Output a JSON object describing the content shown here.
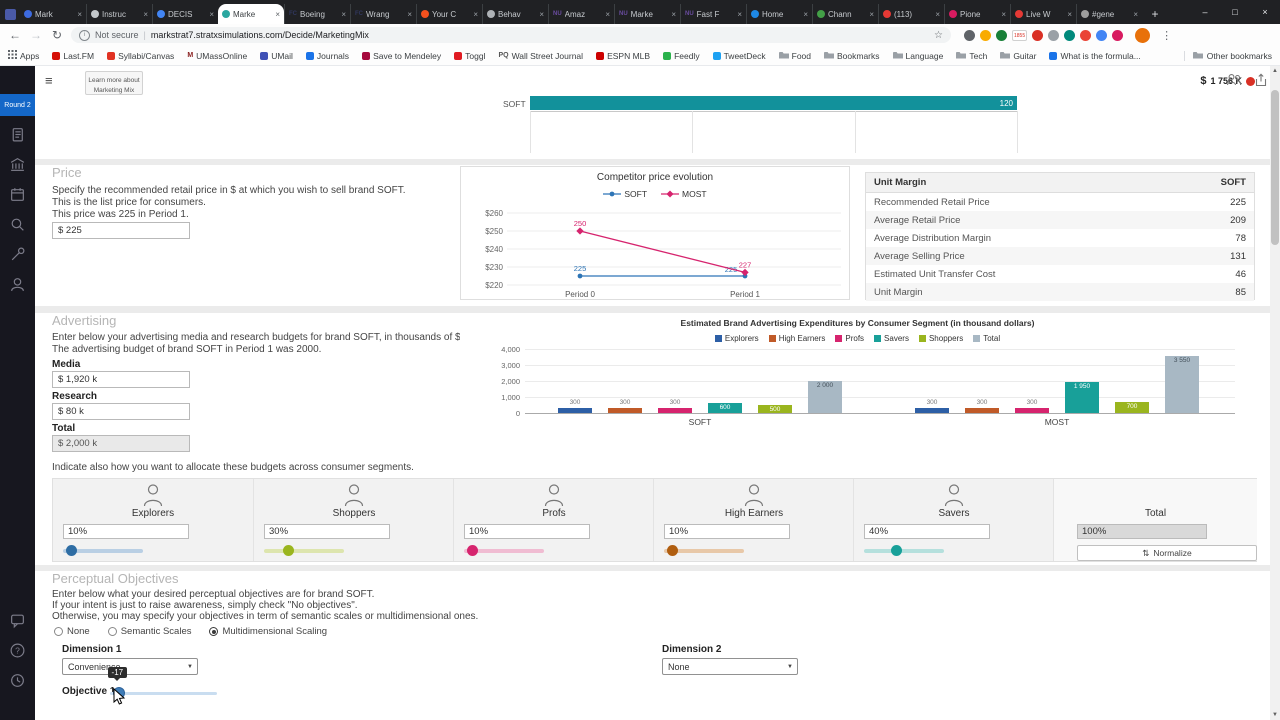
{
  "browser": {
    "window_controls": [
      "minimize",
      "maximize",
      "close"
    ],
    "tabs": [
      {
        "label": "Mark",
        "icon_color": "#3d6be0"
      },
      {
        "label": "Instruc",
        "icon_color": "#c3c7cb"
      },
      {
        "label": "DECIS",
        "icon_color": "#4285f4"
      },
      {
        "label": "Marke",
        "icon_color": "#2aa7a0",
        "active": true
      },
      {
        "label": "Boeing",
        "icon_text": "FC",
        "icon_color": "#30375e"
      },
      {
        "label": "Wrang",
        "icon_text": "FC",
        "icon_color": "#30375e"
      },
      {
        "label": "Your C",
        "icon_color": "#f4511e"
      },
      {
        "label": "Behav",
        "icon_color": "#aeb2b6"
      },
      {
        "label": "Amaz",
        "icon_text": "NU",
        "icon_color": "#6a4ca0"
      },
      {
        "label": "Marke",
        "icon_text": "NU",
        "icon_color": "#6a4ca0"
      },
      {
        "label": "Fast F",
        "icon_text": "NU",
        "icon_color": "#6a4ca0"
      },
      {
        "label": "Home",
        "icon_color": "#1e88e5"
      },
      {
        "label": "Chann",
        "icon_color": "#43a047"
      },
      {
        "label": "(113)",
        "icon_color": "#e53935"
      },
      {
        "label": "Pione",
        "icon_color": "#d81b60"
      },
      {
        "label": "Live W",
        "icon_color": "#e53935"
      },
      {
        "label": "#gene",
        "icon_color": "#9e9e9e"
      }
    ],
    "nav": {
      "not_secure": "Not secure",
      "url": "markstrat7.stratxsimulations.com/Decide/MarketingMix"
    },
    "bookmarks": [
      {
        "label": "Apps",
        "type": "apps"
      },
      {
        "label": "Last.FM",
        "type": "dot",
        "color": "#d51007"
      },
      {
        "label": "Syllabi/Canvas",
        "type": "dot",
        "color": "#e13223"
      },
      {
        "label": "UMassOnline",
        "type": "letter",
        "letter": "M",
        "color": "#881c1c"
      },
      {
        "label": "UMail",
        "type": "dot",
        "color": "#3f51b5"
      },
      {
        "label": "Journals",
        "type": "dot",
        "color": "#1a73e8"
      },
      {
        "label": "Save to Mendeley",
        "type": "dot",
        "color": "#a6093d"
      },
      {
        "label": "Toggl",
        "type": "dot",
        "color": "#e01b22"
      },
      {
        "label": "Wall Street Journal",
        "type": "letter",
        "letter": "PQ",
        "color": "#555555"
      },
      {
        "label": "ESPN MLB",
        "type": "dot",
        "color": "#cc0000"
      },
      {
        "label": "Feedly",
        "type": "dot",
        "color": "#2bb24c"
      },
      {
        "label": "TweetDeck",
        "type": "dot",
        "color": "#1da1f2"
      },
      {
        "label": "Food",
        "type": "folder"
      },
      {
        "label": "Bookmarks",
        "type": "folder"
      },
      {
        "label": "Language",
        "type": "folder"
      },
      {
        "label": "Tech",
        "type": "folder"
      },
      {
        "label": "Guitar",
        "type": "folder"
      },
      {
        "label": "What is the formula...",
        "type": "dot",
        "color": "#1a73e8"
      }
    ],
    "other_bookmarks": "Other bookmarks",
    "extensions": [
      {
        "name": "extension-search-icon",
        "color": "#5f6368"
      },
      {
        "name": "extension-star-icon",
        "color": "#f9ab00"
      },
      {
        "name": "extension-green-icon",
        "color": "#188038"
      },
      {
        "name": "extension-counter-badge",
        "color": "#ffffff",
        "badge": "1855"
      },
      {
        "name": "extension-red-icon",
        "color": "#d93025"
      },
      {
        "name": "extension-gray-icon",
        "color": "#9aa0a6"
      },
      {
        "name": "extension-teal-icon",
        "color": "#00897b"
      },
      {
        "name": "extension-mail-icon",
        "color": "#ea4335"
      },
      {
        "name": "extension-blue-icon",
        "color": "#4285f4"
      },
      {
        "name": "extension-pink-icon",
        "color": "#d81b60"
      }
    ]
  },
  "sidebar": {
    "round_badge": "Round 2",
    "top_icons": [
      "document-icon",
      "bank-icon",
      "calendar-icon",
      "search-icon",
      "wrench-icon",
      "person-icon"
    ],
    "bottom_icons": [
      "chat-icon",
      "help-icon",
      "history-icon"
    ]
  },
  "header": {
    "learn_more_line1": "Learn more about",
    "learn_more_line2": "Marketing Mix",
    "budget_currency": "$",
    "budget_value": "1 756 K"
  },
  "top_chart": {
    "label": "SOFT",
    "value": "120",
    "color": "#12919b"
  },
  "price": {
    "title": "Price",
    "line1": "Specify the recommended retail price in $ at which you wish to sell brand SOFT.",
    "line2": "This is the list price for consumers.",
    "line3": "This price was 225 in Period 1.",
    "value": "$ 225"
  },
  "competitor_chart": {
    "type": "line",
    "title": "Competitor price evolution",
    "x": [
      "Period 0",
      "Period 1"
    ],
    "series": [
      {
        "name": "SOFT",
        "color": "#2e75b6",
        "values": [
          225,
          225
        ]
      },
      {
        "name": "MOST",
        "color": "#d6246e",
        "values": [
          250,
          227
        ]
      }
    ],
    "ylim": [
      220,
      260
    ],
    "yticks": [
      "$260",
      "$250",
      "$240",
      "$230",
      "$220"
    ]
  },
  "unit_margin": {
    "headers": [
      "Unit Margin",
      "SOFT"
    ],
    "rows": [
      {
        "label": "Recommended Retail Price",
        "value": "225"
      },
      {
        "label": "Average Retail Price",
        "value": "209"
      },
      {
        "label": "Average Distribution Margin",
        "value": "78"
      },
      {
        "label": "Average Selling Price",
        "value": "131"
      },
      {
        "label": "Estimated Unit Transfer Cost",
        "value": "46"
      },
      {
        "label": "Unit Margin",
        "value": "85"
      }
    ]
  },
  "advertising": {
    "title": "Advertising",
    "line1": "Enter below your advertising media and research budgets for brand SOFT, in thousands of $.",
    "line2": "The advertising budget of brand SOFT in Period 1 was 2000.",
    "fields": [
      {
        "label": "Media",
        "value": "$ 1,920 k",
        "readonly": false
      },
      {
        "label": "Research",
        "value": "$ 80 k",
        "readonly": false
      },
      {
        "label": "Total",
        "value": "$ 2,000 k",
        "readonly": true
      }
    ]
  },
  "ad_chart": {
    "type": "bar",
    "title": "Estimated Brand Advertising Expenditures by Consumer Segment (in thousand dollars)",
    "categories": [
      "SOFT",
      "MOST"
    ],
    "series": [
      {
        "name": "Explorers",
        "color": "#2d5fa6",
        "values": [
          300,
          300
        ]
      },
      {
        "name": "High Earners",
        "color": "#c05a28",
        "values": [
          300,
          300
        ]
      },
      {
        "name": "Profs",
        "color": "#d6246e",
        "values": [
          300,
          300
        ]
      },
      {
        "name": "Savers",
        "color": "#18a099",
        "values": [
          600,
          1950
        ]
      },
      {
        "name": "Shoppers",
        "color": "#9ab51e",
        "values": [
          500,
          700
        ]
      },
      {
        "name": "Total",
        "color": "#a8b8c4",
        "values": [
          2000,
          3550
        ]
      }
    ],
    "ylim": [
      0,
      4000
    ],
    "yticks": [
      "4,000",
      "3,000",
      "2,000",
      "1,000",
      "0"
    ]
  },
  "allocation": {
    "intro": "Indicate also how you want to allocate these budgets across consumer segments.",
    "segments": [
      {
        "name": "Explorers",
        "value": "10%",
        "pct": 10,
        "color": "#2e6da4",
        "track": "#b9cfe4"
      },
      {
        "name": "Shoppers",
        "value": "30%",
        "pct": 30,
        "color": "#9ab51e",
        "track": "#dde5ae"
      },
      {
        "name": "Profs",
        "value": "10%",
        "pct": 10,
        "color": "#d6246e",
        "track": "#f0bcd2"
      },
      {
        "name": "High Earners",
        "value": "10%",
        "pct": 10,
        "color": "#b05e10",
        "track": "#e8c8a8"
      },
      {
        "name": "Savers",
        "value": "40%",
        "pct": 40,
        "color": "#18a099",
        "track": "#b5e0dd"
      }
    ],
    "total": {
      "name": "Total",
      "value": "100%",
      "normalize_label": "Normalize"
    }
  },
  "perceptual": {
    "title": "Perceptual Objectives",
    "line1": "Enter below what your desired perceptual objectives are for brand SOFT.",
    "line2": "If your intent is just to raise awareness, simply check \"No objectives\".",
    "line3": "Otherwise, you may specify your objectives in term of semantic scales or multidimensional ones.",
    "options": [
      {
        "label": "None",
        "selected": false
      },
      {
        "label": "Semantic Scales",
        "selected": false
      },
      {
        "label": "Multidimensional Scaling",
        "selected": true
      }
    ],
    "dimension1": {
      "label": "Dimension 1",
      "value": "Convenience"
    },
    "dimension2": {
      "label": "Dimension 2",
      "value": "None"
    },
    "objective1": {
      "label": "Objective 1",
      "tooltip": "-17",
      "pct": 8
    }
  }
}
